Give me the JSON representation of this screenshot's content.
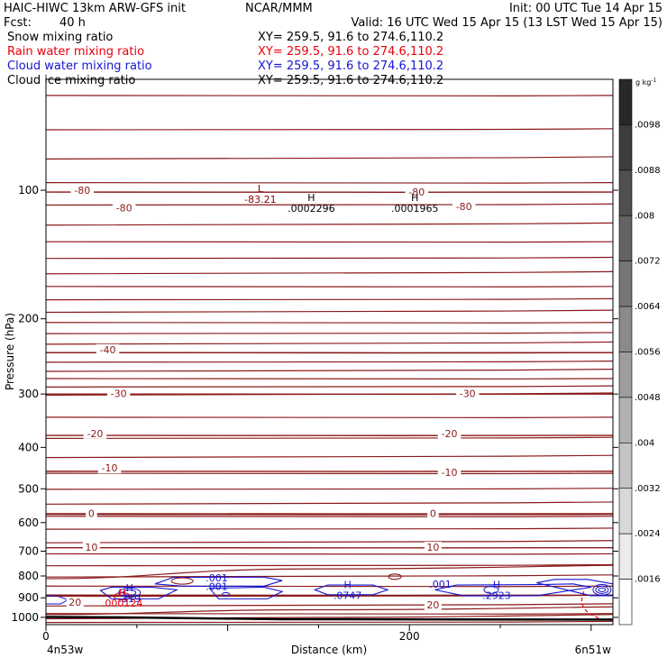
{
  "header": {
    "model": "HAIC-HIWC 13km ARW-GFS init",
    "org": "NCAR/MMM",
    "init": "Init: 00 UTC Tue 14 Apr 15",
    "fcst": "Fcst:",
    "fcst_value": "40 h",
    "valid": "Valid: 16 UTC Wed 15 Apr 15 (13 LST Wed 15 Apr 15)"
  },
  "fields": [
    {
      "name": "Snow mixing ratio",
      "xy": "XY= 259.5, 91.6 to 274.6,110.2",
      "color": "#000000"
    },
    {
      "name": "Rain water mixing ratio",
      "xy": "XY= 259.5, 91.6 to 274.6,110.2",
      "color": "#e8000b"
    },
    {
      "name": "Cloud water mixing ratio",
      "xy": "XY= 259.5, 91.6 to 274.6,110.2",
      "color": "#1515d0"
    },
    {
      "name": "Cloud ice mixing ratio",
      "xy": "XY= 259.5, 91.6 to 274.6,110.2",
      "color": "#000000"
    }
  ],
  "axes": {
    "ylabel": "Pressure (hPa)",
    "xlabel": "Distance (km)",
    "x_left_label": "4n53w",
    "x_right_label": "6n51w"
  },
  "colorbar": {
    "unit": "g kg",
    "unit_exp": "-1",
    "ticks": [
      ".0098",
      ".0088",
      ".008",
      ".0072",
      ".0064",
      ".0056",
      ".0048",
      ".004",
      ".0032",
      ".0024",
      ".0016"
    ]
  },
  "chart_data": {
    "type": "cross-section contour",
    "x_axis": {
      "range": [
        0,
        312
      ],
      "ticks": [
        "0",
        "200"
      ],
      "tick_values": [
        0,
        200
      ]
    },
    "y_axis": {
      "log_pressure": true,
      "range": [
        1040,
        55
      ],
      "ticks": [
        "100",
        "200",
        "300",
        "400",
        "500",
        "600",
        "700",
        "800",
        "900",
        "1000"
      ],
      "tick_values": [
        100,
        200,
        300,
        400,
        500,
        600,
        700,
        800,
        900,
        1000
      ]
    },
    "temperature_isotherms": [
      {
        "label": "-80",
        "pressure": 101
      },
      {
        "label": "-40",
        "pressure": 240
      },
      {
        "label": "-30",
        "pressure": 300
      },
      {
        "label": "-20",
        "pressure": 375
      },
      {
        "label": "-10",
        "pressure": 455
      },
      {
        "label": "0",
        "pressure": 573
      },
      {
        "label": "10",
        "pressure": 687
      },
      {
        "label": "20",
        "pressure": 887
      }
    ],
    "temperature_labels": [
      {
        "text": "-80",
        "x": 20,
        "p": 100
      },
      {
        "text": "-80",
        "x": 43,
        "p": 110
      },
      {
        "text": "-80",
        "x": 204,
        "p": 101
      },
      {
        "text": "-80",
        "x": 230,
        "p": 109
      },
      {
        "text": "-40",
        "x": 34,
        "p": 236
      },
      {
        "text": "-30",
        "x": 40,
        "p": 299
      },
      {
        "text": "-30",
        "x": 232,
        "p": 299
      },
      {
        "text": "-20",
        "x": 27,
        "p": 371
      },
      {
        "text": "-20",
        "x": 222,
        "p": 371
      },
      {
        "text": "-10",
        "x": 35,
        "p": 447
      },
      {
        "text": "-10",
        "x": 222,
        "p": 458
      },
      {
        "text": "0",
        "x": 25,
        "p": 571
      },
      {
        "text": "0",
        "x": 213,
        "p": 571
      },
      {
        "text": "10",
        "x": 25,
        "p": 685
      },
      {
        "text": "10",
        "x": 213,
        "p": 685
      },
      {
        "text": "20",
        "x": 16,
        "p": 921
      },
      {
        "text": "20",
        "x": 213,
        "p": 934
      }
    ],
    "extrema": [
      {
        "type": "L",
        "value": "-83.21",
        "x": 118,
        "p": 102,
        "color": "#8b0000"
      },
      {
        "type": "H",
        "value": ".0002296",
        "x": 146,
        "p": 107,
        "color": "#000000"
      },
      {
        "type": "H",
        "value": ".0001965",
        "x": 203,
        "p": 107,
        "color": "#000000"
      },
      {
        "type": "H",
        "value": ".319",
        "x": 46,
        "p": 878,
        "color": "#1515d0"
      },
      {
        "type": "H",
        "value": ".000124",
        "x": 42,
        "p": 898,
        "color": "#e8000b"
      },
      {
        "type": "H",
        "value": ".0747",
        "x": 166,
        "p": 862,
        "color": "#1515d0"
      },
      {
        "type": "H",
        "value": ".2923",
        "x": 248,
        "p": 862,
        "color": "#1515d0"
      }
    ],
    "cloud_water_labels": [
      {
        "text": ".001",
        "x": 94,
        "p": 808
      },
      {
        "text": ".001",
        "x": 94,
        "p": 845
      },
      {
        "text": ".001",
        "x": 217,
        "p": 836
      }
    ]
  }
}
